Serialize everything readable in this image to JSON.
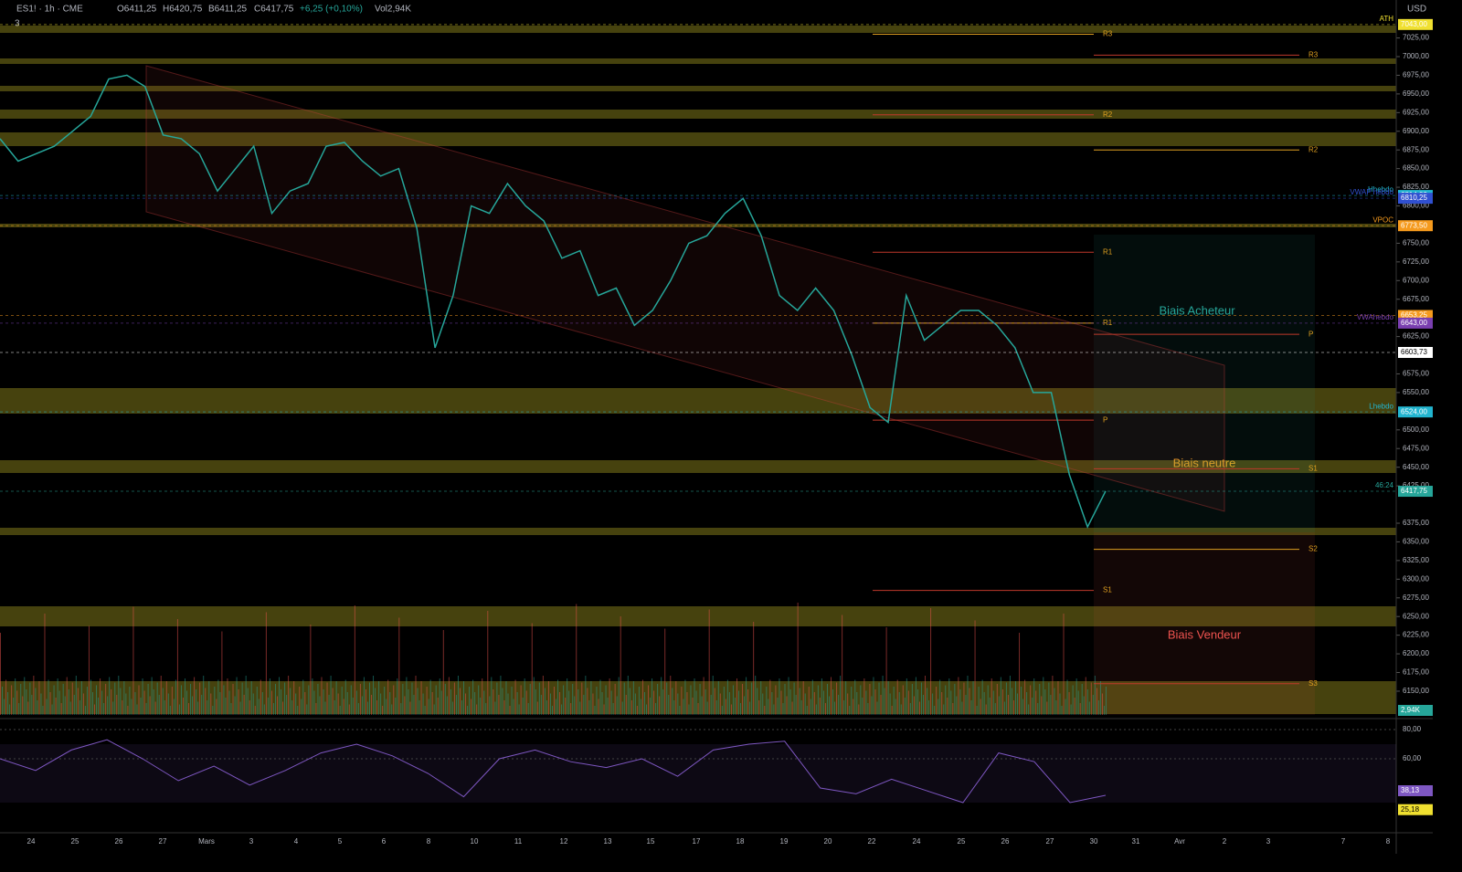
{
  "header": {
    "symbol": "ES1! · 1h · CME",
    "open": "O6411,25",
    "high": "H6420,75",
    "bid": "B6411,25",
    "close": "C6417,75",
    "change": "+6,25 (+0,10%)",
    "volume": "Vol2,94K",
    "indicator_count": "3",
    "currency": "USD"
  },
  "price_axis": {
    "ylim": [
      6118,
      7060
    ],
    "ticks": [
      {
        "value": 7025,
        "label": "7025,00"
      },
      {
        "value": 7000,
        "label": "7000,00"
      },
      {
        "value": 6975,
        "label": "6975,00"
      },
      {
        "value": 6950,
        "label": "6950,00"
      },
      {
        "value": 6925,
        "label": "6925,00"
      },
      {
        "value": 6900,
        "label": "6900,00"
      },
      {
        "value": 6875,
        "label": "6875,00"
      },
      {
        "value": 6850,
        "label": "6850,00"
      },
      {
        "value": 6825,
        "label": "6825,00"
      },
      {
        "value": 6800,
        "label": "6800,00"
      },
      {
        "value": 6750,
        "label": "6750,00"
      },
      {
        "value": 6725,
        "label": "6725,00"
      },
      {
        "value": 6700,
        "label": "6700,00"
      },
      {
        "value": 6675,
        "label": "6675,00"
      },
      {
        "value": 6625,
        "label": "6625,00"
      },
      {
        "value": 6575,
        "label": "6575,00"
      },
      {
        "value": 6550,
        "label": "6550,00"
      },
      {
        "value": 6500,
        "label": "6500,00"
      },
      {
        "value": 6475,
        "label": "6475,00"
      },
      {
        "value": 6450,
        "label": "6450,00"
      },
      {
        "value": 6425,
        "label": "6425,00"
      },
      {
        "value": 6375,
        "label": "6375,00"
      },
      {
        "value": 6350,
        "label": "6350,00"
      },
      {
        "value": 6325,
        "label": "6325,00"
      },
      {
        "value": 6300,
        "label": "6300,00"
      },
      {
        "value": 6275,
        "label": "6275,00"
      },
      {
        "value": 6250,
        "label": "6250,00"
      },
      {
        "value": 6225,
        "label": "6225,00"
      },
      {
        "value": 6200,
        "label": "6200,00"
      },
      {
        "value": 6175,
        "label": "6175,00"
      },
      {
        "value": 6150,
        "label": "6150,00"
      }
    ]
  },
  "price_tags": [
    {
      "value": 7043,
      "label": "7043,00",
      "color": "#f0e030",
      "name": "ATH"
    },
    {
      "value": 6814,
      "label": "6814,00",
      "color": "#22b5d0",
      "name": "Hhebdo"
    },
    {
      "value": 6810.25,
      "label": "6810,25",
      "color": "#3050d0",
      "name": "VWAP hebdo"
    },
    {
      "value": 6773.5,
      "label": "6773,50",
      "color": "#f59a1d",
      "name": "VPOC"
    },
    {
      "value": 6653.25,
      "label": "6653,25",
      "color": "#f59a1d"
    },
    {
      "value": 6643,
      "label": "6643,00",
      "color": "#7a3fb0",
      "name": "VWAhebdo"
    },
    {
      "value": 6603.73,
      "label": "6603,73",
      "color": "#ffffff"
    },
    {
      "value": 6524,
      "label": "6524,00",
      "color": "#22b5d0",
      "name": "Lhebdo"
    },
    {
      "value": 6417.75,
      "label": "6417,75",
      "color": "#26a69a",
      "name": "46:24"
    }
  ],
  "volume_tag": "2,94K",
  "closes": [
    6890,
    6860,
    6870,
    6880,
    6900,
    6920,
    6970,
    6975,
    6960,
    6895,
    6890,
    6870,
    6820,
    6850,
    6880,
    6790,
    6820,
    6830,
    6880,
    6885,
    6860,
    6840,
    6850,
    6770,
    6610,
    6680,
    6800,
    6790,
    6830,
    6800,
    6780,
    6730,
    6740,
    6680,
    6690,
    6640,
    6660,
    6700,
    6750,
    6760,
    6790,
    6810,
    6760,
    6680,
    6660,
    6690,
    6660,
    6600,
    6530,
    6510,
    6680,
    6620,
    6640,
    6660,
    6660,
    6640,
    6610,
    6550,
    6550,
    6440,
    6370,
    6418
  ],
  "pivots": [
    {
      "label": "R3",
      "value": 7030
    },
    {
      "label": "R3",
      "value": 7002
    },
    {
      "label": "R2",
      "value": 6922
    },
    {
      "label": "R2",
      "value": 6875
    },
    {
      "label": "R1",
      "value": 6738
    },
    {
      "label": "P",
      "value": 6628
    },
    {
      "label": "R1",
      "value": 6643
    },
    {
      "label": "S1",
      "value": 6448
    },
    {
      "label": "P",
      "value": 6513
    },
    {
      "label": "S2",
      "value": 6340
    },
    {
      "label": "S1",
      "value": 6285
    },
    {
      "label": "S3",
      "value": 6160
    }
  ],
  "annotations": {
    "buy": "Biais Acheteur",
    "neutral": "Biais neutre",
    "sell": "Biais Vendeur"
  },
  "rsi": {
    "ylim": [
      10,
      85
    ],
    "ticks": [
      {
        "value": 80,
        "label": "80,00"
      },
      {
        "value": 60,
        "label": "60,00"
      }
    ],
    "values": [
      60,
      52,
      66,
      73,
      60,
      45,
      55,
      42,
      52,
      64,
      70,
      62,
      50,
      34,
      60,
      66,
      58,
      54,
      60,
      48,
      66,
      70,
      72,
      40,
      36,
      46,
      38,
      30,
      64,
      58,
      30,
      35
    ],
    "tags": [
      {
        "value": 38.13,
        "label": "38,13",
        "color": "#7e57c2"
      },
      {
        "value": 25.18,
        "label": "25,18",
        "color": "#f0e030"
      }
    ]
  },
  "dates": [
    "24",
    "25",
    "26",
    "27",
    "Mars",
    "3",
    "4",
    "5",
    "6",
    "8",
    "10",
    "11",
    "12",
    "13",
    "15",
    "17",
    "18",
    "19",
    "20",
    "22",
    "24",
    "25",
    "26",
    "27",
    "30",
    "31",
    "Avr",
    "2",
    "3",
    "7",
    "8"
  ]
}
